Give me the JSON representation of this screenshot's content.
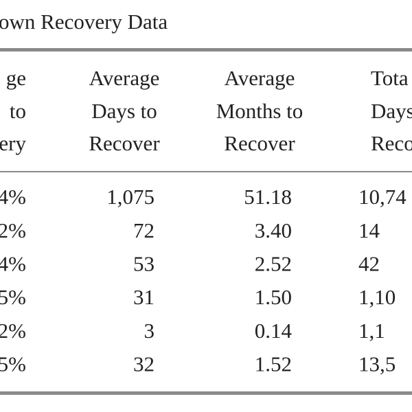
{
  "table": {
    "title": "own Recovery Data",
    "header": [
      [
        "ge",
        "to",
        "ery"
      ],
      [
        "Average",
        "Days to",
        "Recover"
      ],
      [
        "Average",
        "Months to",
        "Recover"
      ],
      [
        "Tota",
        "Days",
        "Recov"
      ]
    ],
    "rows": [
      [
        "4%",
        "1,075",
        "51.18",
        "10,74"
      ],
      [
        "2%",
        "72",
        "3.40",
        "14"
      ],
      [
        "4%",
        "53",
        "2.52",
        "42"
      ],
      [
        "5%",
        "31",
        "1.50",
        "1,10"
      ],
      [
        "2%",
        "3",
        "0.14",
        "1,1"
      ],
      [
        "5%",
        "32",
        "1.52",
        "13,5"
      ]
    ]
  }
}
